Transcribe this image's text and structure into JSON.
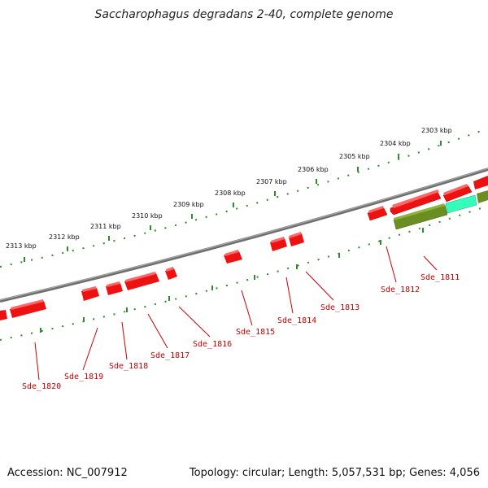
{
  "title": "Saccharophagus degradans 2-40, complete genome",
  "footer": {
    "accession": "Accession: NC_007912",
    "stats": "Topology: circular; Length: 5,057,531 bp; Genes: 4,056"
  },
  "colors": {
    "backbone": "#7a7a7a",
    "gene_forward": "#ee1111",
    "gene_other": "#6b8e23",
    "gene_highlight": "#33ffbb",
    "ticks": "#2e8b2e",
    "label": "#cc0000"
  },
  "kbp_labels": [
    "2303 kbp",
    "2304 kbp",
    "2305 kbp",
    "2306 kbp",
    "2307 kbp",
    "2308 kbp",
    "2309 kbp",
    "2310 kbp",
    "2311 kbp",
    "2312 kbp",
    "2313 kbp"
  ],
  "gene_labels": [
    "Sde_1811",
    "Sde_1812",
    "Sde_1813",
    "Sde_1814",
    "Sde_1815",
    "Sde_1816",
    "Sde_1817",
    "Sde_1818",
    "Sde_1819",
    "Sde_1820"
  ]
}
